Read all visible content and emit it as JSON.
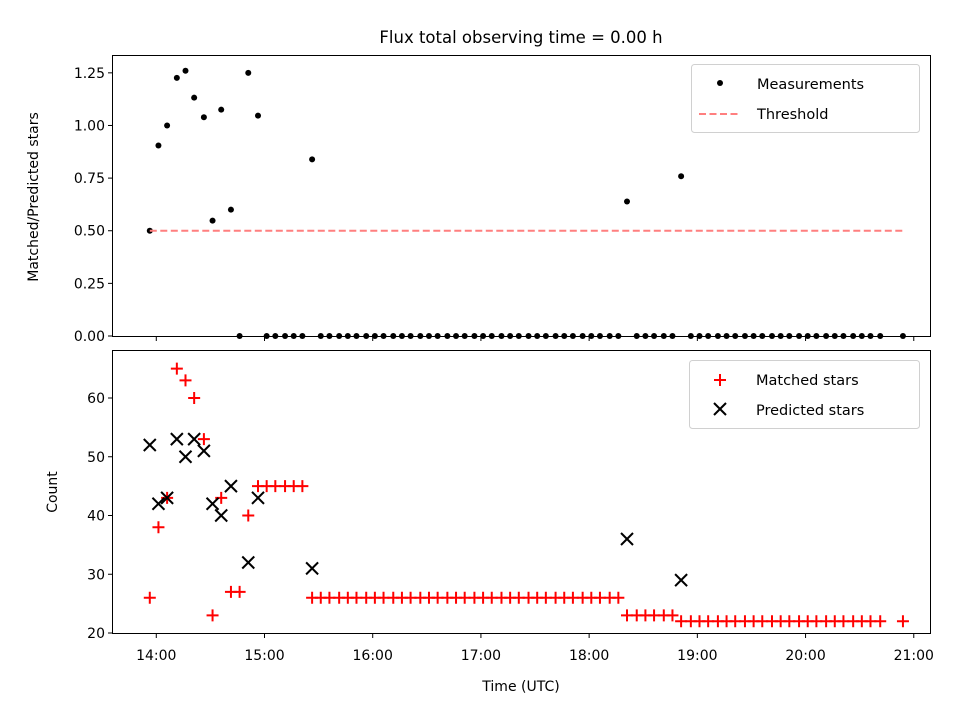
{
  "chart_data": [
    {
      "type": "scatter",
      "title": "Flux total observing time = 0.00 h",
      "xlabel": "",
      "ylabel": "Matched/Predicted stars",
      "xlim": [
        13.6,
        21.15
      ],
      "ylim": [
        0,
        1.33
      ],
      "yticks": [
        0.0,
        0.25,
        0.5,
        0.75,
        1.0,
        1.25
      ],
      "ytick_labels": [
        "0.00",
        "0.25",
        "0.50",
        "0.75",
        "1.00",
        "1.25"
      ],
      "legend": "top-right",
      "series": [
        {
          "name": "Measurements",
          "kind": "dot",
          "color": "#000000",
          "x": [
            13.94,
            14.02,
            14.1,
            14.19,
            14.27,
            14.35,
            14.44,
            14.52,
            14.6,
            14.69,
            14.77,
            14.85,
            14.94,
            15.02,
            15.1,
            15.19,
            15.27,
            15.35,
            15.44,
            15.52,
            15.6,
            15.69,
            15.77,
            15.85,
            15.94,
            16.02,
            16.1,
            16.19,
            16.27,
            16.35,
            16.44,
            16.52,
            16.6,
            16.69,
            16.77,
            16.85,
            16.94,
            17.02,
            17.1,
            17.19,
            17.27,
            17.35,
            17.44,
            17.52,
            17.6,
            17.69,
            17.77,
            17.85,
            17.94,
            18.02,
            18.1,
            18.19,
            18.27,
            18.35,
            18.44,
            18.52,
            18.6,
            18.69,
            18.77,
            18.85,
            18.94,
            19.02,
            19.1,
            19.19,
            19.27,
            19.35,
            19.44,
            19.52,
            19.6,
            19.69,
            19.77,
            19.85,
            19.94,
            20.02,
            20.1,
            20.19,
            20.27,
            20.35,
            20.44,
            20.52,
            20.6,
            20.69,
            20.9
          ],
          "y": [
            0.5,
            0.905,
            1.0,
            1.226,
            1.26,
            1.132,
            1.039,
            0.548,
            1.075,
            0.6,
            0.0,
            1.25,
            1.047,
            0.0,
            0.0,
            0.0,
            0.0,
            0.0,
            0.839,
            0.0,
            0.0,
            0.0,
            0.0,
            0.0,
            0.0,
            0.0,
            0.0,
            0.0,
            0.0,
            0.0,
            0.0,
            0.0,
            0.0,
            0.0,
            0.0,
            0.0,
            0.0,
            0.0,
            0.0,
            0.0,
            0.0,
            0.0,
            0.0,
            0.0,
            0.0,
            0.0,
            0.0,
            0.0,
            0.0,
            0.0,
            0.0,
            0.0,
            0.0,
            0.639,
            0.0,
            0.0,
            0.0,
            0.0,
            0.0,
            0.759,
            0.0,
            0.0,
            0.0,
            0.0,
            0.0,
            0.0,
            0.0,
            0.0,
            0.0,
            0.0,
            0.0,
            0.0,
            0.0,
            0.0,
            0.0,
            0.0,
            0.0,
            0.0,
            0.0,
            0.0,
            0.0,
            0.0,
            0.0
          ]
        },
        {
          "name": "Threshold",
          "kind": "dashed-line",
          "color": "#ff7f7f",
          "x": [
            13.94,
            20.9
          ],
          "y": [
            0.5,
            0.5
          ]
        }
      ]
    },
    {
      "type": "scatter",
      "title": "",
      "xlabel": "Time (UTC)",
      "ylabel": "Count",
      "xlim": [
        13.6,
        21.15
      ],
      "ylim": [
        20,
        68
      ],
      "yticks": [
        20,
        30,
        40,
        50,
        60
      ],
      "ytick_labels": [
        "20",
        "30",
        "40",
        "50",
        "60"
      ],
      "xticks": [
        14,
        15,
        16,
        17,
        18,
        19,
        20,
        21
      ],
      "xtick_labels": [
        "14:00",
        "15:00",
        "16:00",
        "17:00",
        "18:00",
        "19:00",
        "20:00",
        "21:00"
      ],
      "legend": "top-right",
      "series": [
        {
          "name": "Matched stars",
          "kind": "plus",
          "color": "#ff0000",
          "x": [
            13.94,
            14.02,
            14.1,
            14.19,
            14.27,
            14.35,
            14.44,
            14.52,
            14.6,
            14.69,
            14.77,
            14.85,
            14.94,
            15.02,
            15.1,
            15.19,
            15.27,
            15.35,
            15.44,
            15.52,
            15.6,
            15.69,
            15.77,
            15.85,
            15.94,
            16.02,
            16.1,
            16.19,
            16.27,
            16.35,
            16.44,
            16.52,
            16.6,
            16.69,
            16.77,
            16.85,
            16.94,
            17.02,
            17.1,
            17.19,
            17.27,
            17.35,
            17.44,
            17.52,
            17.6,
            17.69,
            17.77,
            17.85,
            17.94,
            18.02,
            18.1,
            18.19,
            18.27,
            18.35,
            18.44,
            18.52,
            18.6,
            18.69,
            18.77,
            18.85,
            18.94,
            19.02,
            19.1,
            19.19,
            19.27,
            19.35,
            19.44,
            19.52,
            19.6,
            19.69,
            19.77,
            19.85,
            19.94,
            20.02,
            20.1,
            20.19,
            20.27,
            20.35,
            20.44,
            20.52,
            20.6,
            20.69,
            20.9
          ],
          "y": [
            26,
            38,
            43,
            65,
            63,
            60,
            53,
            23,
            43,
            27,
            27,
            40,
            45,
            45,
            45,
            45,
            45,
            45,
            26,
            26,
            26,
            26,
            26,
            26,
            26,
            26,
            26,
            26,
            26,
            26,
            26,
            26,
            26,
            26,
            26,
            26,
            26,
            26,
            26,
            26,
            26,
            26,
            26,
            26,
            26,
            26,
            26,
            26,
            26,
            26,
            26,
            26,
            26,
            23,
            23,
            23,
            23,
            23,
            23,
            22,
            22,
            22,
            22,
            22,
            22,
            22,
            22,
            22,
            22,
            22,
            22,
            22,
            22,
            22,
            22,
            22,
            22,
            22,
            22,
            22,
            22,
            22,
            22
          ]
        },
        {
          "name": "Predicted stars",
          "kind": "cross",
          "color": "#000000",
          "x": [
            13.94,
            14.02,
            14.1,
            14.19,
            14.27,
            14.35,
            14.44,
            14.52,
            14.6,
            14.69,
            14.85,
            14.94,
            15.44,
            18.35,
            18.85
          ],
          "y": [
            52,
            42,
            43,
            53,
            50,
            53,
            51,
            42,
            40,
            45,
            32,
            43,
            31,
            36,
            29
          ]
        }
      ]
    }
  ]
}
